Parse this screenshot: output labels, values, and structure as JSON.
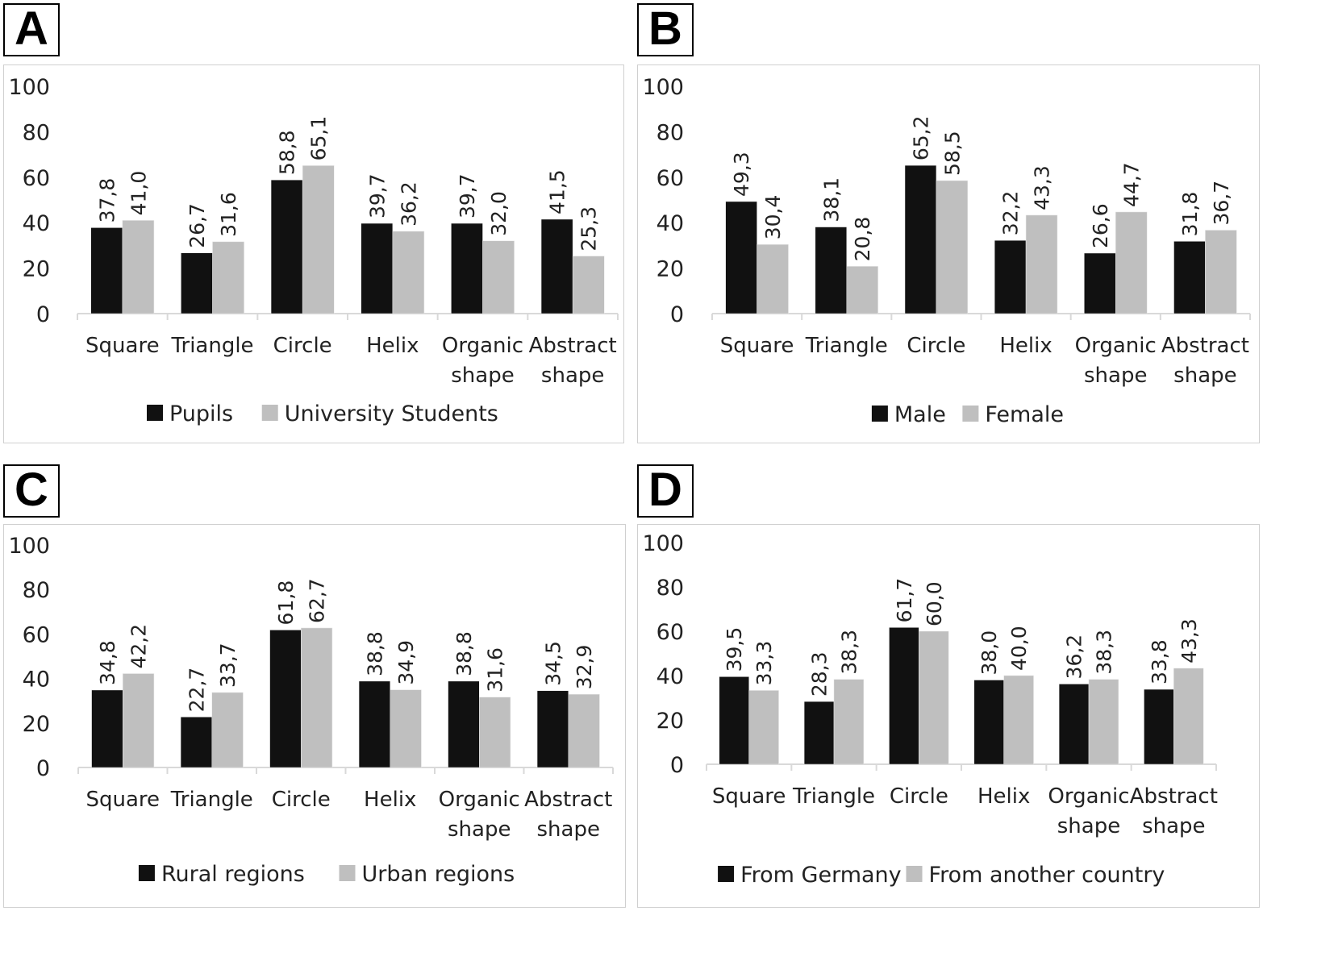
{
  "colors": {
    "series_dark": "#111111",
    "series_light": "#bfbfbf",
    "axis": "#d9d9d9"
  },
  "chart_data": [
    {
      "panel": "A",
      "type": "bar",
      "categories": [
        [
          "Square"
        ],
        [
          "Triangle"
        ],
        [
          "Circle"
        ],
        [
          "Helix"
        ],
        [
          "Organic",
          "shape"
        ],
        [
          "Abstract",
          "shape"
        ]
      ],
      "series": [
        {
          "name": "Pupils",
          "values": [
            37.8,
            26.7,
            58.8,
            39.7,
            39.7,
            41.5
          ],
          "labels": [
            "37,8",
            "26,7",
            "58,8",
            "39,7",
            "39,7",
            "41,5"
          ]
        },
        {
          "name": "University Students",
          "values": [
            41.0,
            31.6,
            65.1,
            36.2,
            32.0,
            25.3
          ],
          "labels": [
            "41,0",
            "31,6",
            "65,1",
            "36,2",
            "32,0",
            "25,3"
          ]
        }
      ],
      "yticks": [
        "0",
        "20",
        "40",
        "60",
        "80",
        "100"
      ],
      "ylim": [
        0,
        100
      ],
      "legend": "bottom"
    },
    {
      "panel": "B",
      "type": "bar",
      "categories": [
        [
          "Square"
        ],
        [
          "Triangle"
        ],
        [
          "Circle"
        ],
        [
          "Helix"
        ],
        [
          "Organic",
          "shape"
        ],
        [
          "Abstract",
          "shape"
        ]
      ],
      "series": [
        {
          "name": "Male",
          "values": [
            49.3,
            38.1,
            65.2,
            32.2,
            26.6,
            31.8
          ],
          "labels": [
            "49,3",
            "38,1",
            "65,2",
            "32,2",
            "26,6",
            "31,8"
          ]
        },
        {
          "name": "Female",
          "values": [
            30.4,
            20.8,
            58.5,
            43.3,
            44.7,
            36.7
          ],
          "labels": [
            "30,4",
            "20,8",
            "58,5",
            "43,3",
            "44,7",
            "36,7"
          ]
        }
      ],
      "yticks": [
        "0",
        "20",
        "40",
        "60",
        "80",
        "100"
      ],
      "ylim": [
        0,
        100
      ],
      "legend": "bottom"
    },
    {
      "panel": "C",
      "type": "bar",
      "categories": [
        [
          "Square"
        ],
        [
          "Triangle"
        ],
        [
          "Circle"
        ],
        [
          "Helix"
        ],
        [
          "Organic",
          "shape"
        ],
        [
          "Abstract",
          "shape"
        ]
      ],
      "series": [
        {
          "name": "Rural regions",
          "values": [
            34.8,
            22.7,
            61.8,
            38.8,
            38.8,
            34.5
          ],
          "labels": [
            "34,8",
            "22,7",
            "61,8",
            "38,8",
            "38,8",
            "34,5"
          ]
        },
        {
          "name": "Urban regions",
          "values": [
            42.2,
            33.7,
            62.7,
            34.9,
            31.6,
            32.9
          ],
          "labels": [
            "42,2",
            "33,7",
            "62,7",
            "34,9",
            "31,6",
            "32,9"
          ]
        }
      ],
      "yticks": [
        "0",
        "20",
        "40",
        "60",
        "80",
        "100"
      ],
      "ylim": [
        0,
        100
      ],
      "legend": "bottom"
    },
    {
      "panel": "D",
      "type": "bar",
      "categories": [
        [
          "Square"
        ],
        [
          "Triangle"
        ],
        [
          "Circle"
        ],
        [
          "Helix"
        ],
        [
          "Organic",
          "shape"
        ],
        [
          "Abstract",
          "shape"
        ]
      ],
      "series": [
        {
          "name": "From Germany",
          "values": [
            39.5,
            28.3,
            61.7,
            38.0,
            36.2,
            33.8
          ],
          "labels": [
            "39,5",
            "28,3",
            "61,7",
            "38,0",
            "36,2",
            "33,8"
          ]
        },
        {
          "name": "From another country",
          "values": [
            33.3,
            38.3,
            60.0,
            40.0,
            38.3,
            43.3
          ],
          "labels": [
            "33,3",
            "38,3",
            "60,0",
            "40,0",
            "38,3",
            "43,3"
          ]
        }
      ],
      "yticks": [
        "0",
        "20",
        "40",
        "60",
        "80",
        "100"
      ],
      "ylim": [
        0,
        100
      ],
      "legend": "bottom"
    }
  ]
}
